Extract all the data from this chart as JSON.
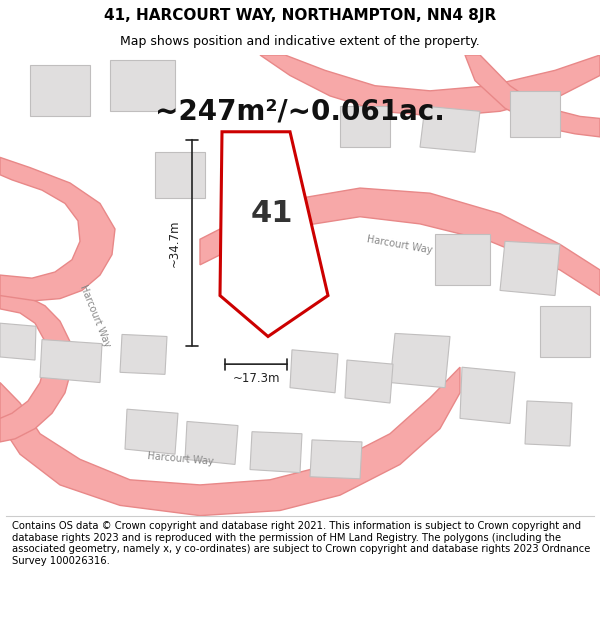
{
  "title": "41, HARCOURT WAY, NORTHAMPTON, NN4 8JR",
  "subtitle": "Map shows position and indicative extent of the property.",
  "area_label": "~247m²/~0.061ac.",
  "plot_number": "41",
  "dim_width": "~17.3m",
  "dim_height": "~34.7m",
  "road_label_1": "Harcourt Way",
  "road_label_2": "Harcourt Way",
  "road_label_3": "Harcourt Way",
  "footer": "Contains OS data © Crown copyright and database right 2021. This information is subject to Crown copyright and database rights 2023 and is reproduced with the permission of HM Land Registry. The polygons (including the associated geometry, namely x, y co-ordinates) are subject to Crown copyright and database rights 2023 Ordnance Survey 100026316.",
  "bg_color": "#f5f5f5",
  "map_bg": "#f0efee",
  "road_color": "#f7a8a8",
  "road_stroke": "#e88888",
  "building_fill": "#e0dede",
  "building_stroke": "#c0bebe",
  "plot_fill": "#ffffff",
  "plot_stroke": "#cc0000",
  "dim_color": "#222222",
  "title_fontsize": 11,
  "subtitle_fontsize": 9,
  "area_fontsize": 20,
  "footer_fontsize": 7.2
}
